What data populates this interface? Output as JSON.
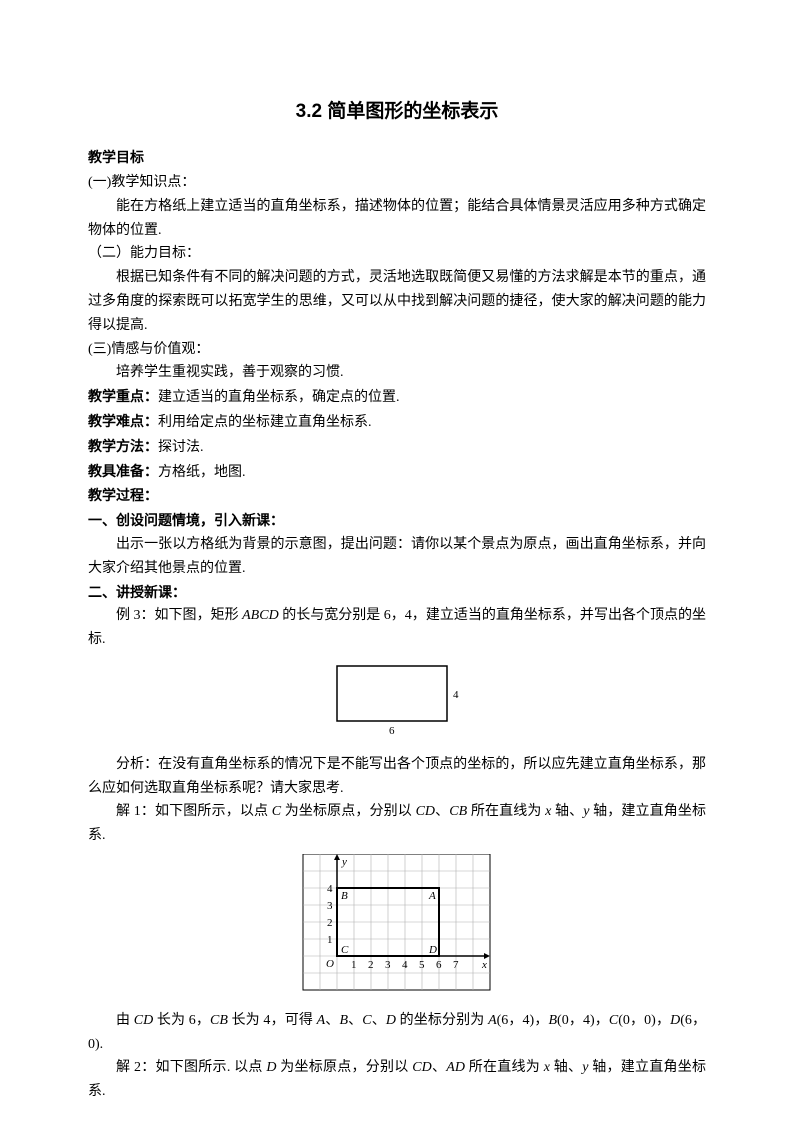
{
  "title": "3.2 简单图形的坐标表示",
  "s1": {
    "h": "教学目标"
  },
  "s1a": {
    "h": "(一)教学知识点：",
    "p": "能在方格纸上建立适当的直角坐标系，描述物体的位置；能结合具体情景灵活应用多种方式确定物体的位置."
  },
  "s1b": {
    "h": "（二）能力目标：",
    "p": "根据已知条件有不同的解决问题的方式，灵活地选取既简便又易懂的方法求解是本节的重点，通过多角度的探索既可以拓宽学生的思维，又可以从中找到解决问题的捷径，使大家的解决问题的能力得以提高."
  },
  "s1c": {
    "h": "(三)情感与价值观：",
    "p": "培养学生重视实践，善于观察的习惯."
  },
  "s2": {
    "label": "教学重点：",
    "t": "建立适当的直角坐标系，确定点的位置."
  },
  "s3": {
    "label": "教学难点：",
    "t": "利用给定点的坐标建立直角坐标系."
  },
  "s4": {
    "label": "教学方法：",
    "t": "探讨法."
  },
  "s5": {
    "label": "教具准备：",
    "t": "方格纸，地图."
  },
  "s6": {
    "label": "教学过程："
  },
  "sec1": {
    "h": "一、创设问题情境，引入新课：",
    "p": "出示一张以方格纸为背景的示意图，提出问题：请你以某个景点为原点，画出直角坐标系，并向大家介绍其他景点的位置."
  },
  "sec2": {
    "h": "二、讲授新课：",
    "ex3_pre": "例 3：如下图，矩形 ",
    "ex3_abcd": "ABCD",
    "ex3_post": " 的长与宽分别是 6，4，建立适当的直角坐标系，并写出各个顶点的坐标.",
    "analysis": "分析：在没有直角坐标系的情况下是不能写出各个顶点的坐标的，所以应先建立直角坐标系，那么应如何选取直角坐标系呢？请大家思考.",
    "sol1_pre": "解 1：如下图所示，以点 ",
    "sol1_c": "C",
    "sol1_mid1": " 为坐标原点，分别以 ",
    "sol1_cd": "CD",
    "sol1_sep": "、",
    "sol1_cb": "CB",
    "sol1_mid2": " 所在直线为 ",
    "sol1_x": "x",
    "sol1_mid3": " 轴、",
    "sol1_y": "y",
    "sol1_end": " 轴，建立直角坐标系.",
    "result_pre": "由 ",
    "result_cd": "CD",
    "result_t1": " 长为 6，",
    "result_cb": "CB",
    "result_t2": " 长为 4，可得 ",
    "result_a": "A",
    "result_s1": "、",
    "result_b": "B",
    "result_s2": "、",
    "result_c": "C",
    "result_s3": "、",
    "result_d": "D",
    "result_t3": " 的坐标分别为 ",
    "result_a2": "A",
    "result_t4": "(6，4)，",
    "result_b2": "B",
    "result_t5": "(0，4)，",
    "result_c2": "C",
    "result_t6": "(0，0)，",
    "result_d2": "D",
    "result_t7": "(6，0).",
    "sol2_pre": "解 2：如下图所示. 以点 ",
    "sol2_d": "D",
    "sol2_mid1": " 为坐标原点，分别以 ",
    "sol2_cd": "CD",
    "sol2_sep": "、",
    "sol2_ad": "AD",
    "sol2_mid2": " 所在直线为 ",
    "sol2_x": "x",
    "sol2_mid3": " 轴、",
    "sol2_y": "y",
    "sol2_end": " 轴，建立直角坐标系."
  },
  "fig1": {
    "w": "6",
    "h": "4"
  },
  "fig2": {
    "axis_y": "y",
    "axis_x": "x",
    "origin": "O",
    "pB": "B",
    "pA": "A",
    "pC": "C",
    "pD": "D",
    "yticks": [
      "1",
      "2",
      "3",
      "4"
    ],
    "xticks": [
      "1",
      "2",
      "3",
      "4",
      "5",
      "6",
      "7"
    ],
    "grid_color": "#b0b0b0",
    "axis_color": "#000000",
    "rect_color": "#000000",
    "bg": "#ffffff"
  }
}
